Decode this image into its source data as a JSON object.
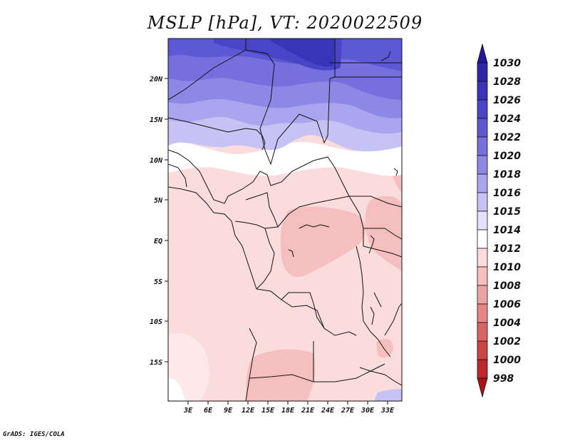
{
  "title": "MSLP [hPa], VT: 2020022509",
  "credit": "GrADS: IGES/COLA",
  "map": {
    "variable": "MSLP",
    "units": "hPa",
    "valid_time": "2020022509",
    "lon_ticks": [
      "3E",
      "6E",
      "9E",
      "12E",
      "15E",
      "18E",
      "21E",
      "24E",
      "27E",
      "30E",
      "33E"
    ],
    "lat_ticks": [
      "20N",
      "15N",
      "10N",
      "5N",
      "EQ",
      "5S",
      "10S",
      "15S"
    ]
  },
  "colorbar": {
    "levels": [
      "1030",
      "1028",
      "1026",
      "1024",
      "1022",
      "1020",
      "1018",
      "1016",
      "1015",
      "1014",
      "1012",
      "1010",
      "1008",
      "1006",
      "1004",
      "1002",
      "1000",
      "998"
    ],
    "colors": [
      "#201a98",
      "#2d27a8",
      "#3a34b8",
      "#4a45c6",
      "#5d58d4",
      "#7570de",
      "#8d88e6",
      "#a9a5ee",
      "#c6c3f4",
      "#e4e2fa",
      "#ffffff",
      "#fbdcdc",
      "#f6bfbf",
      "#eea3a3",
      "#e58585",
      "#da6363",
      "#cc4444",
      "#bb2a2a",
      "#a51616"
    ]
  }
}
